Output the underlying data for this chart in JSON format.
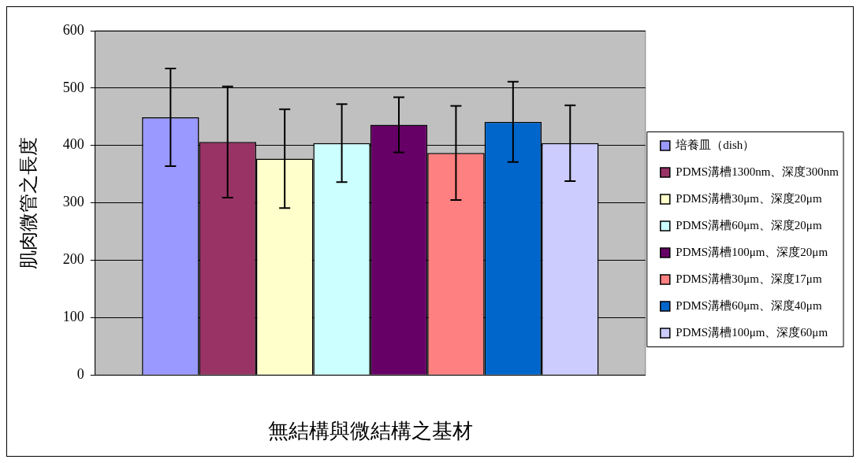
{
  "chart_data": {
    "type": "bar",
    "xlabel": "無結構與微結構之基材",
    "ylabel": "肌肉微管之長度",
    "categories": [
      null
    ],
    "series": [
      {
        "name": "培養皿（dish）",
        "color": "#9999ff",
        "values": [
          449
        ],
        "errors": [
          85
        ]
      },
      {
        "name": "PDMS溝槽1300nm、深度300nm",
        "color": "#993366",
        "values": [
          406
        ],
        "errors": [
          97
        ]
      },
      {
        "name": "PDMS溝槽30μm、深度20μm",
        "color": "#ffffcc",
        "values": [
          377
        ],
        "errors": [
          86
        ]
      },
      {
        "name": "PDMS溝槽60μm、深度20μm",
        "color": "#ccffff",
        "values": [
          404
        ],
        "errors": [
          68
        ]
      },
      {
        "name": "PDMS溝槽100μm、深度20μm",
        "color": "#660066",
        "values": [
          436
        ],
        "errors": [
          48
        ]
      },
      {
        "name": "PDMS溝槽30μm、深度17μm",
        "color": "#ff8080",
        "values": [
          387
        ],
        "errors": [
          82
        ]
      },
      {
        "name": "PDMS溝槽60μm、深度40μm",
        "color": "#0066cc",
        "values": [
          441
        ],
        "errors": [
          70
        ]
      },
      {
        "name": "PDMS溝槽100μm、深度60μm",
        "color": "#ccccff",
        "values": [
          404
        ],
        "errors": [
          66
        ]
      }
    ],
    "ylim": [
      0,
      600
    ],
    "yticks": [
      0,
      100,
      200,
      300,
      400,
      500,
      600
    ],
    "grid": "y",
    "legend": "right"
  }
}
